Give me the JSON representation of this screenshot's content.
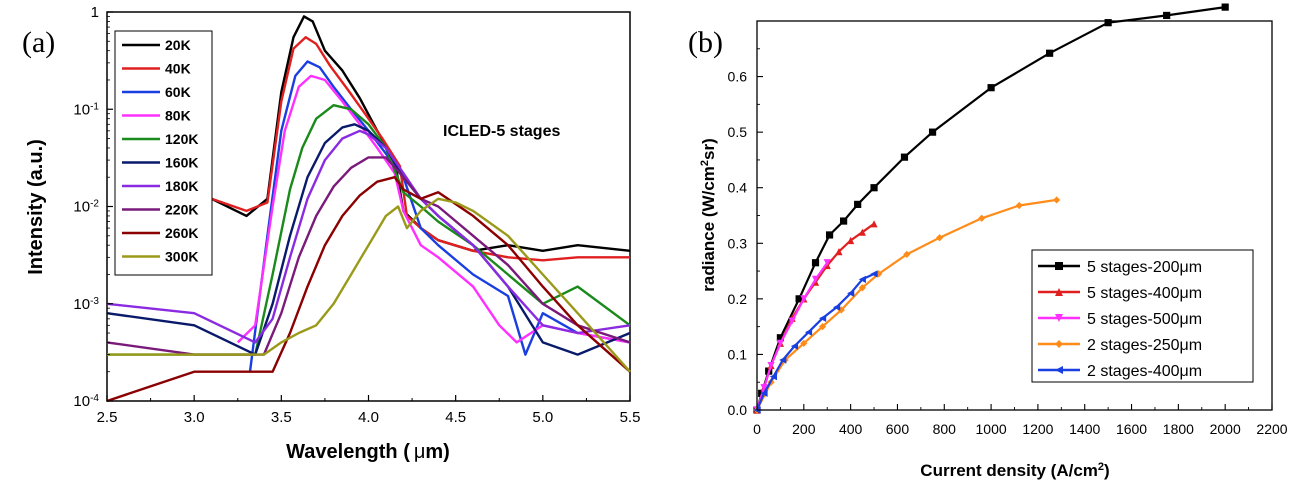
{
  "chart_data": [
    {
      "type": "line",
      "panel_label": "(a)",
      "xlabel_main": "Wavelength (",
      "xlabel_mu": "μ",
      "xlabel_unit": "m)",
      "ylabel": "Intensity (a.u.)",
      "yscale": "log",
      "xlim": [
        2.5,
        5.5
      ],
      "ylim": [
        0.0001,
        1
      ],
      "x_ticks": [
        2.5,
        3.0,
        3.5,
        4.0,
        4.5,
        5.0,
        5.5
      ],
      "x_tick_labels": [
        "2.5",
        "3.0",
        "3.5",
        "4.0",
        "4.5",
        "5.0",
        "5.5"
      ],
      "y_ticks": [
        0.0001,
        0.001,
        0.01,
        0.1,
        1
      ],
      "y_tick_labels": [
        {
          "base": "10",
          "exp": "-4"
        },
        {
          "base": "10",
          "exp": "-3"
        },
        {
          "base": "10",
          "exp": "-2"
        },
        {
          "base": "10",
          "exp": "-1"
        },
        {
          "base": "1",
          "exp": ""
        }
      ],
      "annotation": "ICLED-5 stages",
      "legend_position": "top-left",
      "series": [
        {
          "name": "20K",
          "color": "#000000",
          "x": [
            3.1,
            3.3,
            3.42,
            3.5,
            3.57,
            3.63,
            3.68,
            3.75,
            3.85,
            3.95,
            4.05,
            4.15,
            4.2,
            4.3,
            4.4,
            4.6,
            4.8,
            5.0,
            5.2,
            5.5
          ],
          "y": [
            0.012,
            0.008,
            0.012,
            0.15,
            0.55,
            0.9,
            0.8,
            0.4,
            0.25,
            0.13,
            0.06,
            0.03,
            0.009,
            0.006,
            0.0045,
            0.0035,
            0.004,
            0.0035,
            0.004,
            0.0035
          ]
        },
        {
          "name": "40K",
          "color": "#e02020",
          "x": [
            3.1,
            3.3,
            3.42,
            3.5,
            3.57,
            3.64,
            3.7,
            3.78,
            3.88,
            3.98,
            4.08,
            4.18,
            4.22,
            4.3,
            4.4,
            4.6,
            4.8,
            5.0,
            5.2,
            5.5
          ],
          "y": [
            0.012,
            0.009,
            0.011,
            0.12,
            0.42,
            0.55,
            0.47,
            0.28,
            0.16,
            0.09,
            0.05,
            0.026,
            0.008,
            0.006,
            0.0045,
            0.0035,
            0.003,
            0.0028,
            0.003,
            0.003
          ]
        },
        {
          "name": "60K",
          "color": "#1a3fe0",
          "x": [
            3.32,
            3.42,
            3.5,
            3.58,
            3.65,
            3.72,
            3.8,
            3.9,
            4.0,
            4.1,
            4.2,
            4.3,
            4.4,
            4.6,
            4.8,
            4.9,
            5.0,
            5.2,
            5.5
          ],
          "y": [
            0.0002,
            0.005,
            0.06,
            0.22,
            0.31,
            0.27,
            0.17,
            0.1,
            0.06,
            0.035,
            0.02,
            0.006,
            0.004,
            0.002,
            0.0012,
            0.0003,
            0.0008,
            0.0005,
            0.0004
          ]
        },
        {
          "name": "80K",
          "color": "#ff30ff",
          "x": [
            3.25,
            3.35,
            3.45,
            3.52,
            3.6,
            3.67,
            3.75,
            3.85,
            3.95,
            4.05,
            4.15,
            4.2,
            4.3,
            4.4,
            4.6,
            4.75,
            4.85,
            5.0,
            5.2,
            5.5
          ],
          "y": [
            0.0004,
            0.0006,
            0.01,
            0.06,
            0.17,
            0.22,
            0.2,
            0.12,
            0.07,
            0.04,
            0.022,
            0.009,
            0.004,
            0.003,
            0.0015,
            0.0006,
            0.0004,
            0.0006,
            0.0005,
            0.0004
          ]
        },
        {
          "name": "120K",
          "color": "#1a8a1a",
          "x": [
            2.5,
            3.0,
            3.35,
            3.45,
            3.55,
            3.62,
            3.7,
            3.8,
            3.9,
            4.0,
            4.1,
            4.2,
            4.3,
            4.4,
            4.6,
            4.8,
            5.0,
            5.2,
            5.5
          ],
          "y": [
            0.0003,
            0.0003,
            0.0003,
            0.002,
            0.015,
            0.04,
            0.08,
            0.11,
            0.1,
            0.07,
            0.04,
            0.014,
            0.01,
            0.007,
            0.004,
            0.002,
            0.001,
            0.0015,
            0.0006
          ]
        },
        {
          "name": "160K",
          "color": "#0a1a6a",
          "x": [
            2.5,
            3.0,
            3.35,
            3.45,
            3.55,
            3.65,
            3.75,
            3.85,
            3.92,
            4.0,
            4.1,
            4.2,
            4.3,
            4.4,
            4.6,
            4.8,
            5.0,
            5.2,
            5.5
          ],
          "y": [
            0.0008,
            0.0006,
            0.0003,
            0.001,
            0.005,
            0.02,
            0.045,
            0.065,
            0.07,
            0.06,
            0.04,
            0.02,
            0.012,
            0.008,
            0.004,
            0.0015,
            0.0004,
            0.0003,
            0.0005
          ]
        },
        {
          "name": "180K",
          "color": "#8a2be2",
          "x": [
            2.5,
            3.0,
            3.35,
            3.45,
            3.55,
            3.65,
            3.75,
            3.85,
            3.95,
            4.0,
            4.1,
            4.2,
            4.3,
            4.4,
            4.6,
            4.8,
            5.0,
            5.2,
            5.5
          ],
          "y": [
            0.001,
            0.0008,
            0.0004,
            0.0007,
            0.003,
            0.012,
            0.03,
            0.05,
            0.06,
            0.055,
            0.04,
            0.022,
            0.012,
            0.008,
            0.004,
            0.0015,
            0.0006,
            0.0005,
            0.0006
          ]
        },
        {
          "name": "220K",
          "color": "#7a1a7a",
          "x": [
            2.5,
            3.0,
            3.4,
            3.5,
            3.6,
            3.7,
            3.8,
            3.9,
            4.0,
            4.1,
            4.2,
            4.3,
            4.4,
            4.6,
            4.8,
            5.0,
            5.2,
            5.5
          ],
          "y": [
            0.0004,
            0.0003,
            0.0003,
            0.0008,
            0.003,
            0.008,
            0.016,
            0.025,
            0.032,
            0.032,
            0.02,
            0.012,
            0.01,
            0.005,
            0.0025,
            0.001,
            0.0006,
            0.0004
          ]
        },
        {
          "name": "260K",
          "color": "#8b0000",
          "x": [
            2.5,
            3.0,
            3.45,
            3.55,
            3.65,
            3.75,
            3.85,
            3.95,
            4.05,
            4.15,
            4.2,
            4.3,
            4.4,
            4.6,
            4.8,
            5.0,
            5.2,
            5.5
          ],
          "y": [
            0.0001,
            0.0002,
            0.0002,
            0.0005,
            0.0015,
            0.004,
            0.008,
            0.013,
            0.018,
            0.02,
            0.015,
            0.012,
            0.014,
            0.008,
            0.004,
            0.0015,
            0.0006,
            0.0002
          ]
        },
        {
          "name": "300K",
          "color": "#9a9a1a",
          "x": [
            2.5,
            3.0,
            3.4,
            3.5,
            3.6,
            3.7,
            3.8,
            3.9,
            4.0,
            4.1,
            4.17,
            4.22,
            4.3,
            4.4,
            4.5,
            4.6,
            4.8,
            5.0,
            5.2,
            5.5
          ],
          "y": [
            0.0003,
            0.0003,
            0.0003,
            0.0004,
            0.0005,
            0.0006,
            0.001,
            0.002,
            0.004,
            0.008,
            0.01,
            0.006,
            0.009,
            0.012,
            0.011,
            0.009,
            0.005,
            0.002,
            0.0008,
            0.0002
          ]
        }
      ]
    },
    {
      "type": "line",
      "panel_label": "(b)",
      "xlabel_main": "Current density (A/cm",
      "xlabel_sup": "2",
      "xlabel_end": ")",
      "ylabel_main": "radiance (W/cm",
      "ylabel_sup": "2",
      "ylabel_end": "sr)",
      "xlim": [
        0,
        2200
      ],
      "ylim": [
        0,
        0.7
      ],
      "x_ticks": [
        0,
        200,
        400,
        600,
        800,
        1000,
        1200,
        1400,
        1600,
        1800,
        2000,
        2200
      ],
      "x_tick_labels": [
        "0",
        "200",
        "400",
        "600",
        "800",
        "1000",
        "1200",
        "1400",
        "1600",
        "1800",
        "2000",
        "2200"
      ],
      "y_ticks": [
        0.0,
        0.1,
        0.2,
        0.3,
        0.4,
        0.5,
        0.6
      ],
      "y_tick_labels": [
        "0.0",
        "0.1",
        "0.2",
        "0.3",
        "0.4",
        "0.5",
        "0.6"
      ],
      "legend_position": "lower-right",
      "series": [
        {
          "name": "5 stages-200μm",
          "color": "#000000",
          "marker": "square",
          "x": [
            0,
            20,
            50,
            100,
            180,
            250,
            310,
            370,
            430,
            500,
            630,
            750,
            1000,
            1250,
            1500,
            1750,
            2000
          ],
          "y": [
            0.0,
            0.03,
            0.07,
            0.13,
            0.2,
            0.265,
            0.315,
            0.34,
            0.37,
            0.4,
            0.455,
            0.5,
            0.58,
            0.642,
            0.697,
            0.71,
            0.725
          ]
        },
        {
          "name": "5 stages-400μm",
          "color": "#e02020",
          "marker": "triangle-up",
          "x": [
            0,
            30,
            60,
            100,
            150,
            200,
            250,
            300,
            350,
            400,
            450,
            500
          ],
          "y": [
            0.0,
            0.04,
            0.08,
            0.12,
            0.165,
            0.2,
            0.23,
            0.26,
            0.285,
            0.305,
            0.32,
            0.335
          ]
        },
        {
          "name": "5 stages-500μm",
          "color": "#ff30ff",
          "marker": "triangle-down",
          "x": [
            0,
            30,
            60,
            100,
            150,
            200,
            250,
            300
          ],
          "y": [
            0.0,
            0.04,
            0.08,
            0.12,
            0.16,
            0.2,
            0.235,
            0.265
          ]
        },
        {
          "name": "2 stages-250μm",
          "color": "#ff8c1a",
          "marker": "diamond",
          "x": [
            0,
            60,
            120,
            200,
            280,
            360,
            450,
            520,
            640,
            780,
            960,
            1120,
            1280
          ],
          "y": [
            0.0,
            0.05,
            0.09,
            0.12,
            0.15,
            0.18,
            0.22,
            0.245,
            0.28,
            0.31,
            0.345,
            0.368,
            0.378
          ]
        },
        {
          "name": "2 stages-400μm",
          "color": "#1a3fe0",
          "marker": "triangle-left",
          "x": [
            0,
            30,
            70,
            110,
            160,
            220,
            280,
            340,
            400,
            450,
            500
          ],
          "y": [
            0.0,
            0.03,
            0.06,
            0.09,
            0.115,
            0.14,
            0.165,
            0.185,
            0.21,
            0.235,
            0.245
          ]
        }
      ]
    }
  ]
}
